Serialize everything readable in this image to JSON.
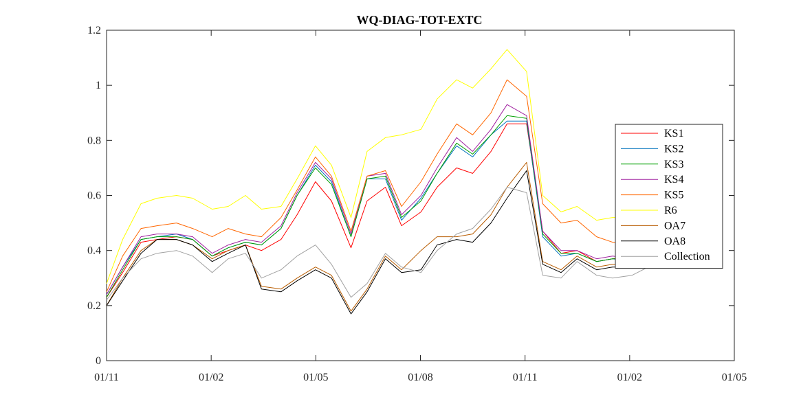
{
  "chart_data": {
    "type": "line",
    "title": "WQ-DIAG-TOT-EXTC",
    "xlabel": "",
    "ylabel": "",
    "xlim": [
      "2019-11-01",
      "2021-05-01"
    ],
    "ylim": [
      0,
      1.2
    ],
    "x_ticks": [
      "01/11",
      "01/02",
      "01/05",
      "01/08",
      "01/11",
      "01/02",
      "01/05"
    ],
    "y_ticks": [
      "0",
      "0.2",
      "0.4",
      "0.6",
      "0.8",
      "1",
      "1.2"
    ],
    "grid": false,
    "legend_position": "right",
    "x": [
      "2019-11-01",
      "2019-11-15",
      "2019-12-01",
      "2019-12-15",
      "2020-01-01",
      "2020-01-15",
      "2020-02-01",
      "2020-02-15",
      "2020-03-01",
      "2020-03-15",
      "2020-04-01",
      "2020-04-15",
      "2020-05-01",
      "2020-05-15",
      "2020-06-01",
      "2020-06-15",
      "2020-07-01",
      "2020-07-15",
      "2020-08-01",
      "2020-08-15",
      "2020-09-01",
      "2020-09-15",
      "2020-10-01",
      "2020-10-15",
      "2020-11-01",
      "2020-11-15",
      "2020-12-01",
      "2020-12-15",
      "2021-01-01",
      "2021-01-15",
      "2021-02-01",
      "2021-02-15"
    ],
    "series": [
      {
        "name": "KS1",
        "color": "#ff0000",
        "values": [
          0.23,
          0.32,
          0.43,
          0.44,
          0.45,
          0.44,
          0.38,
          0.4,
          0.42,
          0.4,
          0.44,
          0.53,
          0.65,
          0.58,
          0.41,
          0.58,
          0.63,
          0.49,
          0.54,
          0.63,
          0.7,
          0.68,
          0.76,
          0.86,
          0.86,
          0.47,
          0.39,
          0.4,
          0.36,
          0.37,
          0.38,
          0.38
        ]
      },
      {
        "name": "KS2",
        "color": "#0072bd",
        "values": [
          0.24,
          0.34,
          0.44,
          0.45,
          0.46,
          0.44,
          0.38,
          0.41,
          0.43,
          0.42,
          0.48,
          0.6,
          0.71,
          0.65,
          0.45,
          0.66,
          0.66,
          0.51,
          0.59,
          0.68,
          0.78,
          0.74,
          0.82,
          0.87,
          0.87,
          0.45,
          0.38,
          0.39,
          0.36,
          0.37,
          0.36,
          0.38
        ]
      },
      {
        "name": "KS3",
        "color": "#00a000",
        "values": [
          0.23,
          0.33,
          0.44,
          0.45,
          0.45,
          0.44,
          0.38,
          0.41,
          0.43,
          0.42,
          0.48,
          0.6,
          0.7,
          0.64,
          0.45,
          0.66,
          0.67,
          0.52,
          0.58,
          0.68,
          0.79,
          0.75,
          0.82,
          0.89,
          0.88,
          0.46,
          0.39,
          0.39,
          0.36,
          0.37,
          0.37,
          0.38
        ]
      },
      {
        "name": "KS4",
        "color": "#a020a0",
        "values": [
          0.24,
          0.34,
          0.45,
          0.46,
          0.46,
          0.45,
          0.39,
          0.42,
          0.44,
          0.43,
          0.49,
          0.61,
          0.72,
          0.66,
          0.46,
          0.67,
          0.68,
          0.53,
          0.6,
          0.7,
          0.81,
          0.76,
          0.84,
          0.93,
          0.89,
          0.47,
          0.4,
          0.4,
          0.37,
          0.38,
          0.37,
          0.38
        ]
      },
      {
        "name": "KS5",
        "color": "#ff6600",
        "values": [
          0.25,
          0.38,
          0.48,
          0.49,
          0.5,
          0.48,
          0.45,
          0.48,
          0.46,
          0.45,
          0.52,
          0.62,
          0.74,
          0.67,
          0.47,
          0.67,
          0.69,
          0.56,
          0.65,
          0.75,
          0.86,
          0.82,
          0.9,
          1.02,
          0.96,
          0.57,
          0.5,
          0.51,
          0.45,
          0.43,
          0.42,
          0.43
        ]
      },
      {
        "name": "R6",
        "color": "#ffff00",
        "values": [
          0.28,
          0.44,
          0.57,
          0.59,
          0.6,
          0.59,
          0.55,
          0.56,
          0.6,
          0.55,
          0.56,
          0.66,
          0.78,
          0.71,
          0.52,
          0.76,
          0.81,
          0.82,
          0.84,
          0.95,
          1.02,
          0.99,
          1.06,
          1.13,
          1.05,
          0.6,
          0.54,
          0.56,
          0.51,
          0.52,
          0.52,
          0.53
        ]
      },
      {
        "name": "OA7",
        "color": "#b85c00",
        "values": [
          0.2,
          0.3,
          0.4,
          0.44,
          0.44,
          0.42,
          0.37,
          0.4,
          0.42,
          0.27,
          0.26,
          0.3,
          0.34,
          0.31,
          0.18,
          0.26,
          0.38,
          0.33,
          0.4,
          0.45,
          0.45,
          0.46,
          0.53,
          0.63,
          0.72,
          0.36,
          0.33,
          0.38,
          0.34,
          0.35,
          0.35,
          0.36
        ]
      },
      {
        "name": "OA8",
        "color": "#000000",
        "values": [
          0.2,
          0.29,
          0.39,
          0.44,
          0.44,
          0.42,
          0.36,
          0.39,
          0.42,
          0.26,
          0.25,
          0.29,
          0.33,
          0.3,
          0.17,
          0.25,
          0.37,
          0.32,
          0.33,
          0.42,
          0.44,
          0.43,
          0.5,
          0.59,
          0.69,
          0.35,
          0.32,
          0.37,
          0.33,
          0.34,
          0.34,
          0.35
        ]
      },
      {
        "name": "Collection",
        "color": "#a0a0a0",
        "values": [
          0.22,
          0.3,
          0.37,
          0.39,
          0.4,
          0.38,
          0.32,
          0.37,
          0.39,
          0.3,
          0.33,
          0.38,
          0.42,
          0.35,
          0.23,
          0.28,
          0.39,
          0.34,
          0.32,
          0.4,
          0.46,
          0.48,
          0.55,
          0.63,
          0.61,
          0.31,
          0.3,
          0.36,
          0.31,
          0.3,
          0.31,
          0.34
        ]
      }
    ]
  }
}
